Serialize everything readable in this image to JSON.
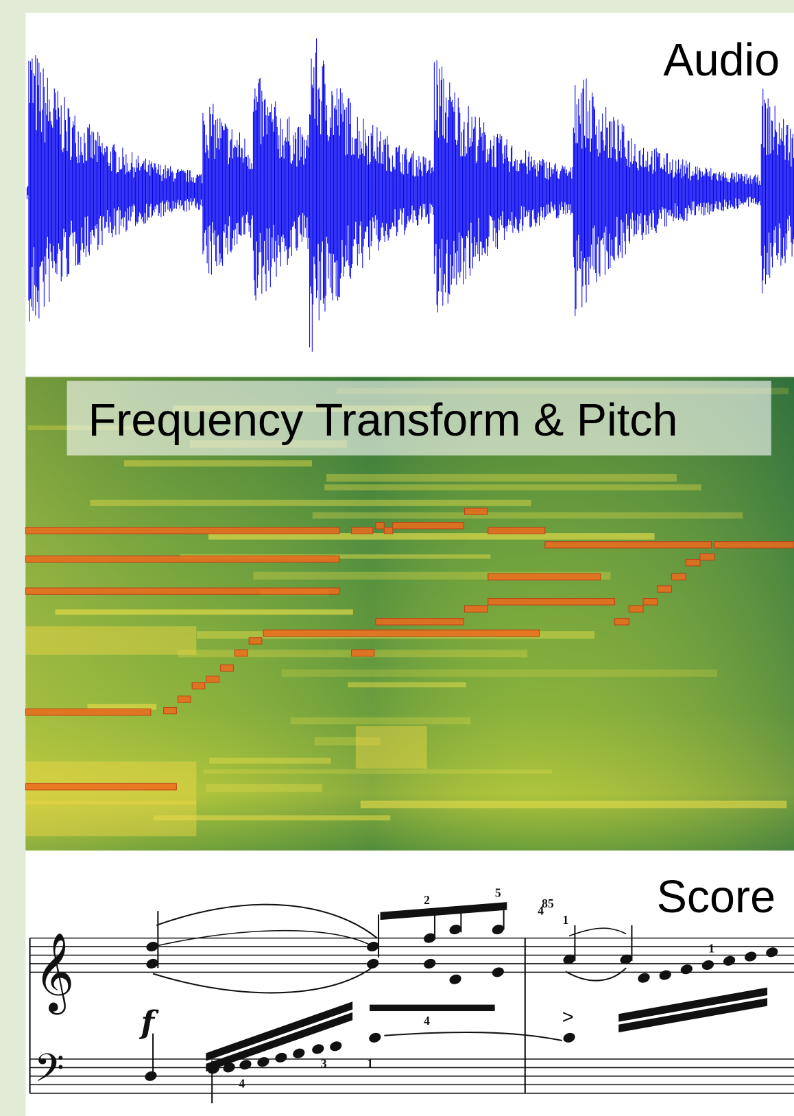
{
  "panels": {
    "audio": {
      "label": "Audio"
    },
    "spectrogram": {
      "label": "Frequency Transform & Pitch"
    },
    "score": {
      "label": "Score",
      "fingerings": [
        "2",
        "5",
        "4",
        "4",
        "85",
        "1",
        "1",
        "4",
        "3",
        "1"
      ]
    }
  }
}
